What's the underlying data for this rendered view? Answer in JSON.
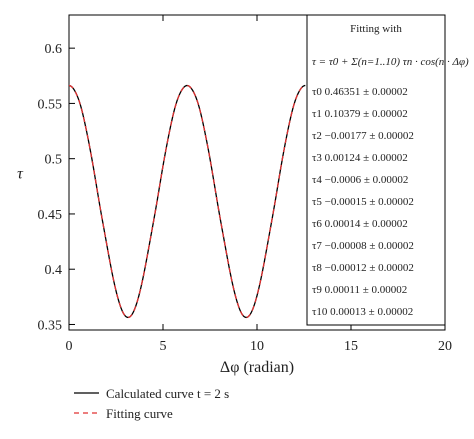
{
  "chart_data": {
    "type": "line",
    "xlabel": "Δφ (radian)",
    "ylabel": "τ",
    "xlim": [
      0,
      20
    ],
    "ylim": [
      0.345,
      0.63
    ],
    "x_ticks": [
      0,
      5,
      10,
      15,
      20
    ],
    "y_ticks": [
      0.35,
      0.4,
      0.45,
      0.5,
      0.55,
      0.6
    ],
    "grid": false,
    "x_range_plotted": [
      0,
      12.57
    ],
    "fit_coefficients": {
      "tau0": 0.46351,
      "tau1": 0.10379,
      "tau2": -0.00177,
      "tau3": 0.00124,
      "tau4": -0.0006,
      "tau5": -0.00015,
      "tau6": 0.00014,
      "tau7": -8e-05,
      "tau8": -0.00012,
      "tau9": 0.00011,
      "tau10": 0.00013
    },
    "series": [
      {
        "name": "Calculated curve t = 2 s",
        "color": "#000000",
        "style": "solid"
      },
      {
        "name": "Fitting curve",
        "color": "#e03030",
        "style": "dashed"
      }
    ],
    "annotation_box": {
      "title": "Fitting with",
      "formula": "τ = τ0 + Σ(n=1..10) τn · cos(n · Δφ)",
      "lines": [
        "τ0 0.46351 ± 0.00002",
        "τ1 0.10379 ± 0.00002",
        "τ2 −0.00177 ± 0.00002",
        "τ3 0.00124 ± 0.00002",
        "τ4 −0.0006 ± 0.00002",
        "τ5 −0.00015 ± 0.00002",
        "τ6 0.00014 ± 0.00002",
        "τ7 −0.00008 ± 0.00002",
        "τ8 −0.00012 ± 0.00002",
        "τ9 0.00011 ± 0.00002",
        "τ10 0.00013 ± 0.00002"
      ]
    },
    "legend": {
      "placement": "bottom-left",
      "entries": [
        "Calculated curve t = 2 s",
        "Fitting curve"
      ]
    }
  }
}
